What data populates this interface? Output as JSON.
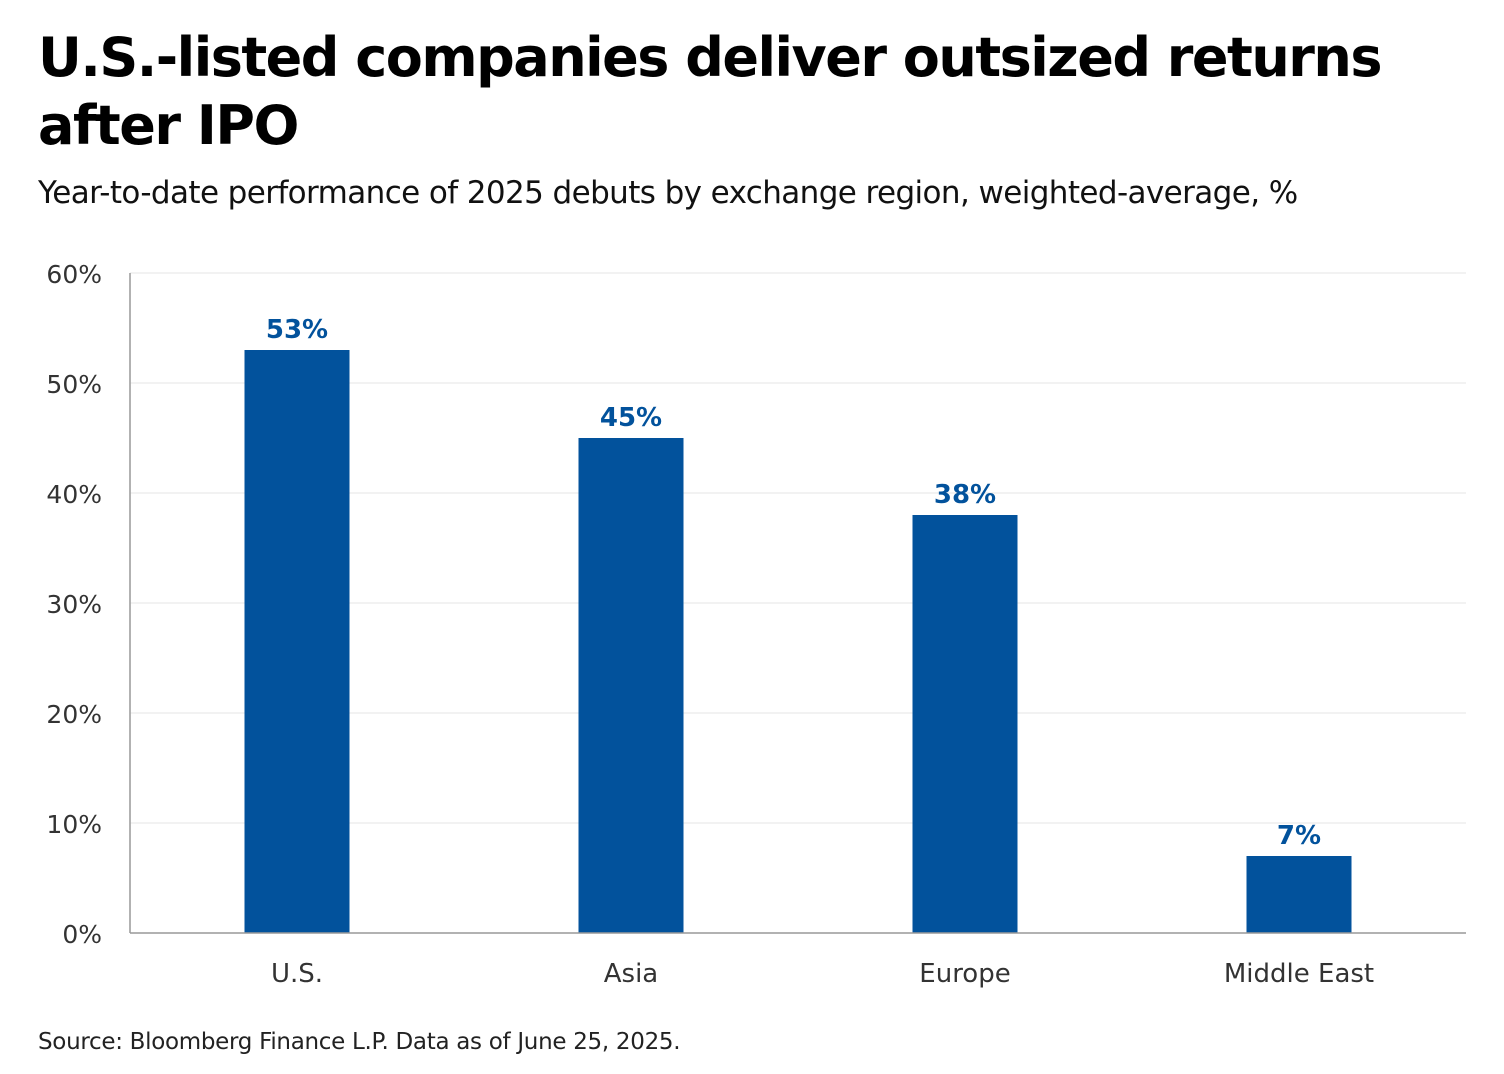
{
  "title": "U.S.-listed companies deliver outsized returns after IPO",
  "subtitle": "Year-to-date performance of 2025 debuts by exchange region, weighted-average, %",
  "source": "Source: Bloomberg Finance L.P. Data as of June 25, 2025.",
  "colors": {
    "bar": "#02529c",
    "label": "#02529c",
    "grid": "#e6e6e6",
    "axis": "#999999",
    "tick_text": "#333333"
  },
  "chart_data": {
    "type": "bar",
    "title": "U.S.-listed companies deliver outsized returns after IPO",
    "subtitle": "Year-to-date performance of 2025 debuts by exchange region, weighted-average, %",
    "categories": [
      "U.S.",
      "Asia",
      "Europe",
      "Middle East"
    ],
    "values": [
      53,
      45,
      38,
      7
    ],
    "data_labels": [
      "53%",
      "45%",
      "38%",
      "7%"
    ],
    "y_ticks": [
      0,
      10,
      20,
      30,
      40,
      50,
      60
    ],
    "y_tick_labels": [
      "0%",
      "10%",
      "20%",
      "30%",
      "40%",
      "50%",
      "60%"
    ],
    "ylim": [
      0,
      60
    ],
    "xlabel": "",
    "ylabel": "",
    "grid": true,
    "legend": "none"
  }
}
